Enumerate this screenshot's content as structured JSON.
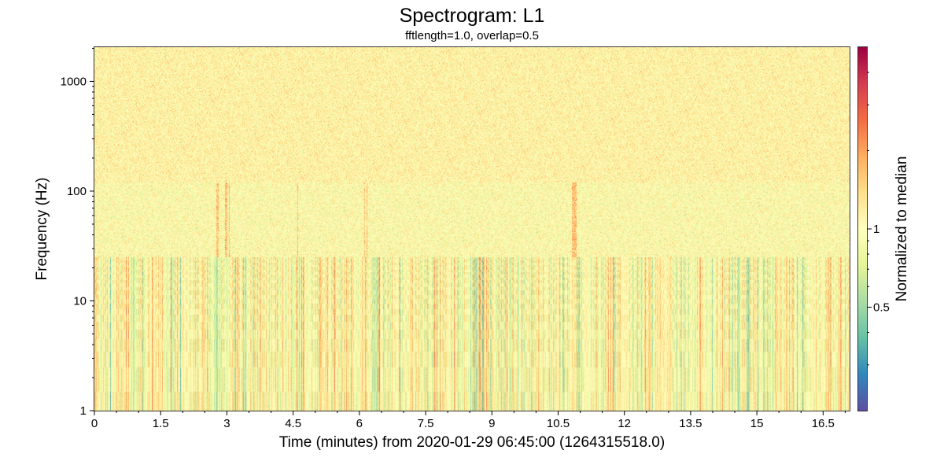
{
  "chart_data": {
    "type": "heatmap",
    "title": "Spectrogram: L1",
    "subtitle": "fftlength=1.0, overlap=0.5",
    "xlabel": "Time (minutes) from 2020-01-29 06:45:00 (1264315518.0)",
    "ylabel": "Frequency (Hz)",
    "colorbar_label": "Normalized to median",
    "colormap": "Spectral_r",
    "xlim": [
      0,
      17.1
    ],
    "ylim": [
      1,
      2048
    ],
    "yscale": "log",
    "x_ticks": [
      {
        "value": 0,
        "label": "0"
      },
      {
        "value": 1.5,
        "label": "1.5"
      },
      {
        "value": 3,
        "label": "3"
      },
      {
        "value": 4.5,
        "label": "4.5"
      },
      {
        "value": 6,
        "label": "6"
      },
      {
        "value": 7.5,
        "label": "7.5"
      },
      {
        "value": 9,
        "label": "9"
      },
      {
        "value": 10.5,
        "label": "10.5"
      },
      {
        "value": 12,
        "label": "12"
      },
      {
        "value": 13.5,
        "label": "13.5"
      },
      {
        "value": 15,
        "label": "15"
      },
      {
        "value": 16.5,
        "label": "16.5"
      }
    ],
    "y_ticks": [
      {
        "value": 1,
        "label": "1"
      },
      {
        "value": 10,
        "label": "10"
      },
      {
        "value": 100,
        "label": "100"
      },
      {
        "value": 1000,
        "label": "1000"
      }
    ],
    "colorbar_range": [
      0.2,
      5
    ],
    "colorbar_scale": "log",
    "colorbar_ticks": [
      {
        "value": 0.5,
        "label": "0.5"
      },
      {
        "value": 1,
        "label": "1"
      }
    ],
    "colors": [
      "#5e4fa2",
      "#3288bd",
      "#66c2a5",
      "#abdda4",
      "#e6f598",
      "#ffffbf",
      "#fee08b",
      "#fdae61",
      "#f46d43",
      "#d53e4f",
      "#9e0142"
    ]
  }
}
